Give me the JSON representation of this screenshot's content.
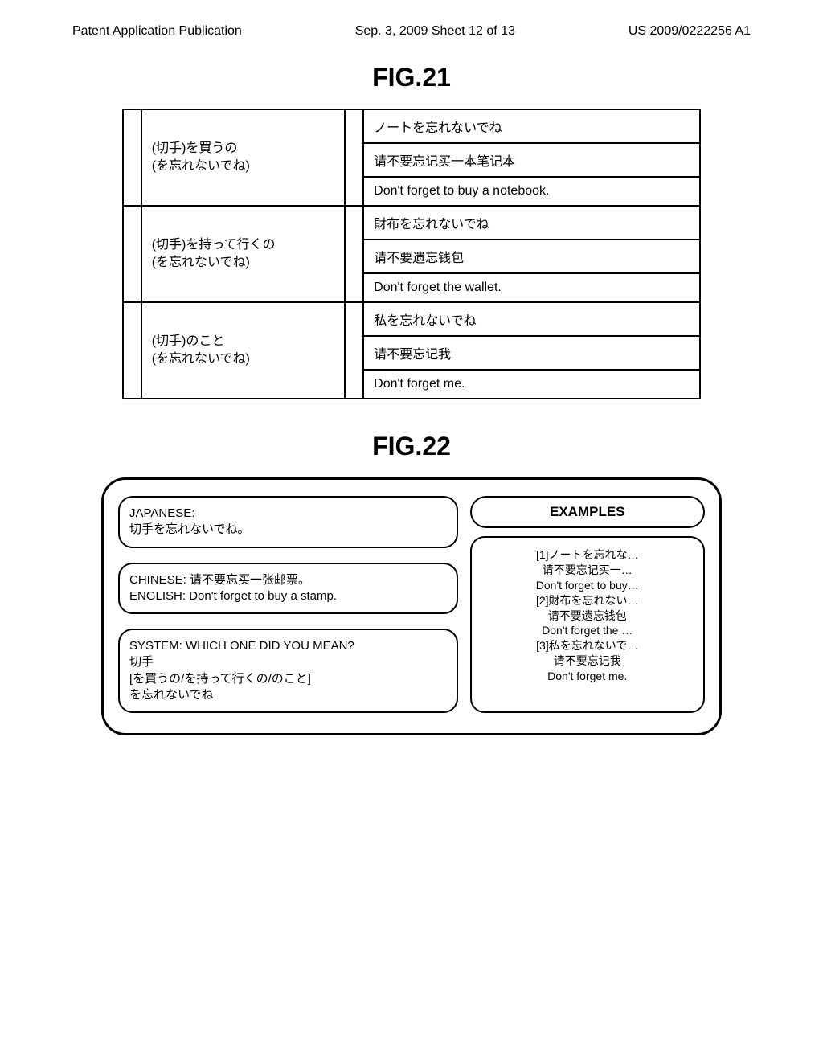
{
  "header": {
    "left": "Patent Application Publication",
    "center": "Sep. 3, 2009  Sheet 12 of 13",
    "right": "US 2009/0222256 A1"
  },
  "fig21": {
    "label": "FIG.21",
    "rows": [
      {
        "left_line1": "(切手)を買うの",
        "left_line2": "(を忘れないでね)",
        "right_jp": "ノートを忘れないでね",
        "right_cn": "请不要忘记买一本笔记本",
        "right_en": "Don't forget to buy a notebook."
      },
      {
        "left_line1": "(切手)を持って行くの",
        "left_line2": "(を忘れないでね)",
        "right_jp": "財布を忘れないでね",
        "right_cn": "请不要遗忘钱包",
        "right_en": "Don't forget the wallet."
      },
      {
        "left_line1": "(切手)のこと",
        "left_line2": "(を忘れないでね)",
        "right_jp": "私を忘れないでね",
        "right_cn": "请不要忘记我",
        "right_en": "Don't forget me."
      }
    ]
  },
  "fig22": {
    "label": "FIG.22",
    "panel_jp_label": "JAPANESE:",
    "panel_jp_text": "切手を忘れないでね。",
    "panel_trans_cn_label": "CHINESE:",
    "panel_trans_cn": "请不要忘买一张邮票。",
    "panel_trans_en_label": "ENGLISH:",
    "panel_trans_en": "Don't forget to buy a stamp.",
    "panel_sys_label": "SYSTEM: WHICH ONE DID YOU MEAN?",
    "panel_sys_l1": "切手",
    "panel_sys_l2": "[を買うの/を持って行くの/のこと]",
    "panel_sys_l3": "を忘れないでね",
    "examples_label": "EXAMPLES",
    "ex_1a": "[1]ノートを忘れな…",
    "ex_1b": "请不要忘记买一…",
    "ex_1c": "Don't forget to buy…",
    "ex_2a": "[2]財布を忘れない…",
    "ex_2b": "请不要遗忘钱包",
    "ex_2c": "Don't forget the …",
    "ex_3a": "[3]私を忘れないで…",
    "ex_3b": "请不要忘记我",
    "ex_3c": "Don't forget me."
  }
}
